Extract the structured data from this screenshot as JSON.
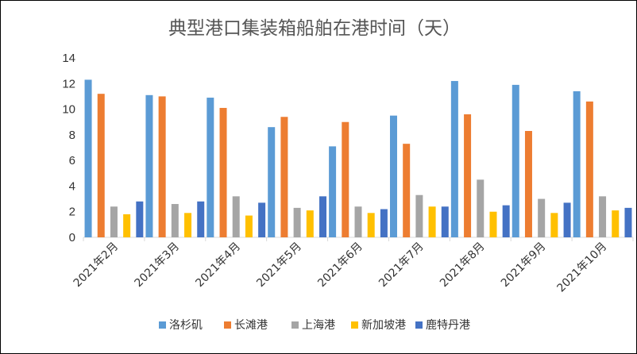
{
  "chart_data": {
    "type": "bar",
    "title": "典型港口集装箱船舶在港时间（天）",
    "xlabel": "",
    "ylabel": "",
    "ylim": [
      0,
      14
    ],
    "yticks": [
      "0",
      "2",
      "4",
      "6",
      "8",
      "10",
      "12",
      "14"
    ],
    "grid": false,
    "legend_position": "bottom",
    "categories": [
      "2021年2月",
      "2021年3月",
      "2021年4月",
      "2021年5月",
      "2021年6月",
      "2021年7月",
      "2021年8月",
      "2021年9月",
      "2021年10月"
    ],
    "series": [
      {
        "name": "洛杉矶",
        "color": "#5B9BD5",
        "values": [
          12.3,
          11.1,
          10.9,
          8.6,
          7.1,
          9.5,
          12.2,
          11.9,
          11.4
        ]
      },
      {
        "name": "长滩港",
        "color": "#ED7D31",
        "values": [
          11.2,
          11.0,
          10.1,
          9.4,
          9.0,
          7.3,
          9.6,
          8.3,
          10.6
        ]
      },
      {
        "name": "上海港",
        "color": "#A5A5A5",
        "values": [
          2.4,
          2.6,
          3.2,
          2.3,
          2.4,
          3.3,
          4.5,
          3.0,
          3.2
        ]
      },
      {
        "name": "新加坡港",
        "color": "#FFC000",
        "values": [
          1.8,
          1.9,
          1.7,
          2.1,
          1.9,
          2.4,
          2.0,
          1.9,
          2.1
        ]
      },
      {
        "name": "鹿特丹港",
        "color": "#4472C4",
        "values": [
          2.8,
          2.8,
          2.7,
          3.2,
          2.2,
          2.4,
          2.5,
          2.7,
          2.3
        ]
      }
    ]
  }
}
